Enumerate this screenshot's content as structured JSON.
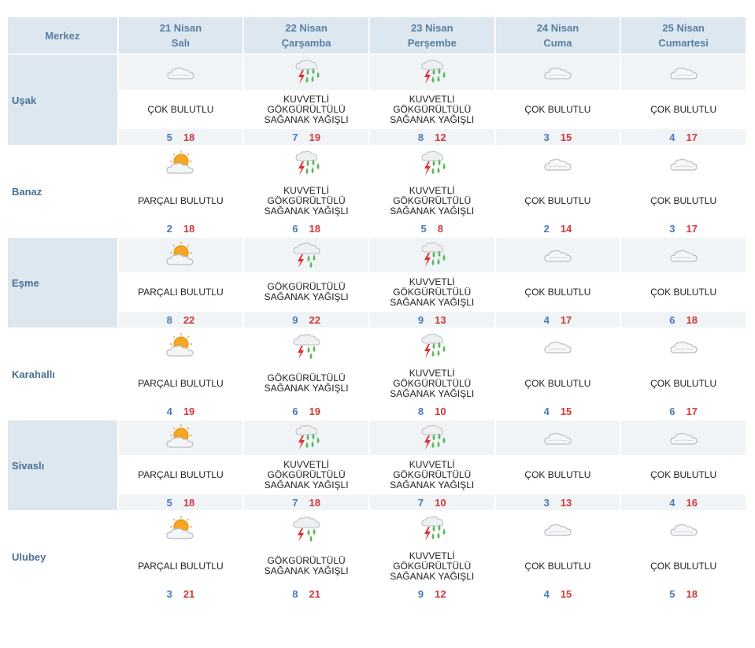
{
  "header": {
    "corner": "Merkez",
    "days": [
      {
        "date": "21 Nisan",
        "weekday": "Salı"
      },
      {
        "date": "22 Nisan",
        "weekday": "Çarşamba"
      },
      {
        "date": "23 Nisan",
        "weekday": "Perşembe"
      },
      {
        "date": "24 Nisan",
        "weekday": "Cuma"
      },
      {
        "date": "25 Nisan",
        "weekday": "Cumartesi"
      }
    ]
  },
  "cities": [
    {
      "name": "Uşak",
      "days": [
        {
          "icon": "cloudy-icon",
          "desc": [
            "ÇOK BULUTLU"
          ],
          "min": "5",
          "max": "18"
        },
        {
          "icon": "heavy-thunder-rain-icon",
          "desc": [
            "KUVVETLİ",
            "GÖKGÜRÜLTÜLÜ",
            "SAĞANAK YAĞIŞLI"
          ],
          "min": "7",
          "max": "19"
        },
        {
          "icon": "heavy-thunder-rain-icon",
          "desc": [
            "KUVVETLİ",
            "GÖKGÜRÜLTÜLÜ",
            "SAĞANAK YAĞIŞLI"
          ],
          "min": "8",
          "max": "12"
        },
        {
          "icon": "cloudy-icon",
          "desc": [
            "ÇOK BULUTLU"
          ],
          "min": "3",
          "max": "15"
        },
        {
          "icon": "cloudy-icon",
          "desc": [
            "ÇOK BULUTLU"
          ],
          "min": "4",
          "max": "17"
        }
      ]
    },
    {
      "name": "Banaz",
      "days": [
        {
          "icon": "partly-cloudy-icon",
          "desc": [
            "PARÇALI BULUTLU"
          ],
          "min": "2",
          "max": "18"
        },
        {
          "icon": "heavy-thunder-rain-icon",
          "desc": [
            "KUVVETLİ",
            "GÖKGÜRÜLTÜLÜ",
            "SAĞANAK YAĞIŞLI"
          ],
          "min": "6",
          "max": "18"
        },
        {
          "icon": "heavy-thunder-rain-icon",
          "desc": [
            "KUVVETLİ",
            "GÖKGÜRÜLTÜLÜ",
            "SAĞANAK YAĞIŞLI"
          ],
          "min": "5",
          "max": "8"
        },
        {
          "icon": "cloudy-icon",
          "desc": [
            "ÇOK BULUTLU"
          ],
          "min": "2",
          "max": "14"
        },
        {
          "icon": "cloudy-icon",
          "desc": [
            "ÇOK BULUTLU"
          ],
          "min": "3",
          "max": "17"
        }
      ]
    },
    {
      "name": "Eşme",
      "days": [
        {
          "icon": "partly-cloudy-icon",
          "desc": [
            "PARÇALI BULUTLU"
          ],
          "min": "8",
          "max": "22"
        },
        {
          "icon": "thunder-rain-icon",
          "desc": [
            "GÖKGÜRÜLTÜLÜ",
            "SAĞANAK YAĞIŞLI"
          ],
          "min": "9",
          "max": "22"
        },
        {
          "icon": "heavy-thunder-rain-icon",
          "desc": [
            "KUVVETLİ",
            "GÖKGÜRÜLTÜLÜ",
            "SAĞANAK YAĞIŞLI"
          ],
          "min": "9",
          "max": "13"
        },
        {
          "icon": "cloudy-icon",
          "desc": [
            "ÇOK BULUTLU"
          ],
          "min": "4",
          "max": "17"
        },
        {
          "icon": "cloudy-icon",
          "desc": [
            "ÇOK BULUTLU"
          ],
          "min": "6",
          "max": "18"
        }
      ]
    },
    {
      "name": "Karahallı",
      "days": [
        {
          "icon": "partly-cloudy-icon",
          "desc": [
            "PARÇALI BULUTLU"
          ],
          "min": "4",
          "max": "19"
        },
        {
          "icon": "thunder-rain-icon",
          "desc": [
            "GÖKGÜRÜLTÜLÜ",
            "SAĞANAK YAĞIŞLI"
          ],
          "min": "6",
          "max": "19"
        },
        {
          "icon": "heavy-thunder-rain-icon",
          "desc": [
            "KUVVETLİ",
            "GÖKGÜRÜLTÜLÜ",
            "SAĞANAK YAĞIŞLI"
          ],
          "min": "8",
          "max": "10"
        },
        {
          "icon": "cloudy-icon",
          "desc": [
            "ÇOK BULUTLU"
          ],
          "min": "4",
          "max": "15"
        },
        {
          "icon": "cloudy-icon",
          "desc": [
            "ÇOK BULUTLU"
          ],
          "min": "6",
          "max": "17"
        }
      ]
    },
    {
      "name": "Sivaslı",
      "days": [
        {
          "icon": "partly-cloudy-icon",
          "desc": [
            "PARÇALI BULUTLU"
          ],
          "min": "5",
          "max": "18"
        },
        {
          "icon": "heavy-thunder-rain-icon",
          "desc": [
            "KUVVETLİ",
            "GÖKGÜRÜLTÜLÜ",
            "SAĞANAK YAĞIŞLI"
          ],
          "min": "7",
          "max": "18"
        },
        {
          "icon": "heavy-thunder-rain-icon",
          "desc": [
            "KUVVETLİ",
            "GÖKGÜRÜLTÜLÜ",
            "SAĞANAK YAĞIŞLI"
          ],
          "min": "7",
          "max": "10"
        },
        {
          "icon": "cloudy-icon",
          "desc": [
            "ÇOK BULUTLU"
          ],
          "min": "3",
          "max": "13"
        },
        {
          "icon": "cloudy-icon",
          "desc": [
            "ÇOK BULUTLU"
          ],
          "min": "4",
          "max": "16"
        }
      ]
    },
    {
      "name": "Ulubey",
      "days": [
        {
          "icon": "partly-cloudy-icon",
          "desc": [
            "PARÇALI BULUTLU"
          ],
          "min": "3",
          "max": "21"
        },
        {
          "icon": "thunder-rain-icon",
          "desc": [
            "GÖKGÜRÜLTÜLÜ",
            "SAĞANAK YAĞIŞLI"
          ],
          "min": "8",
          "max": "21"
        },
        {
          "icon": "heavy-thunder-rain-icon",
          "desc": [
            "KUVVETLİ",
            "GÖKGÜRÜLTÜLÜ",
            "SAĞANAK YAĞIŞLI"
          ],
          "min": "9",
          "max": "12"
        },
        {
          "icon": "cloudy-icon",
          "desc": [
            "ÇOK BULUTLU"
          ],
          "min": "4",
          "max": "15"
        },
        {
          "icon": "cloudy-icon",
          "desc": [
            "ÇOK BULUTLU"
          ],
          "min": "5",
          "max": "18"
        }
      ]
    }
  ],
  "colors": {
    "header_bg": "#dce7f0",
    "header_text": "#5a7fa0",
    "city_text": "#4a6f93",
    "min_temp": "#4a7ab5",
    "max_temp": "#d0393b",
    "rain_green": "#5cb85c",
    "lightning_red": "#e03030",
    "sun_orange": "#f5a623"
  }
}
